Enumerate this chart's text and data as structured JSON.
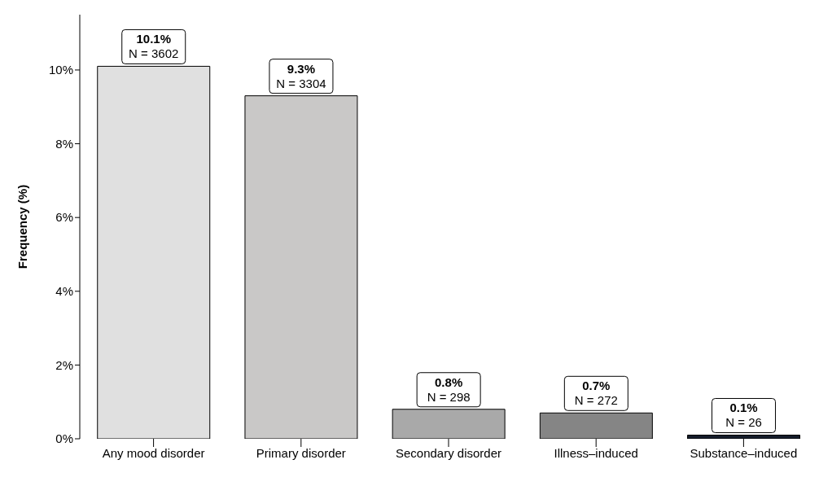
{
  "chart_data": {
    "type": "bar",
    "ylabel": "Frequency (%)",
    "categories": [
      "Any mood disorder",
      "Primary disorder",
      "Secondary disorder",
      "Illness–induced",
      "Substance–induced"
    ],
    "values": [
      10.1,
      9.3,
      0.8,
      0.7,
      0.1
    ],
    "colors": [
      "#e0e0e0",
      "#c9c8c7",
      "#a9a9a9",
      "#858585",
      "#141c2a"
    ],
    "value_labels": [
      "10.1%\nN = 3602",
      "9.3%\nN = 3304",
      "0.8%\nN = 298",
      "0.7%\nN = 272",
      "0.1%\nN = 26"
    ],
    "ylim": [
      0,
      11.5
    ],
    "yticks": [
      {
        "value": 0,
        "label": "0%"
      },
      {
        "value": 2,
        "label": "2%"
      },
      {
        "value": 4,
        "label": "4%"
      },
      {
        "value": 6,
        "label": "6%"
      },
      {
        "value": 8,
        "label": "8%"
      },
      {
        "value": 10,
        "label": "10%"
      }
    ],
    "grid": false,
    "legend": false
  }
}
